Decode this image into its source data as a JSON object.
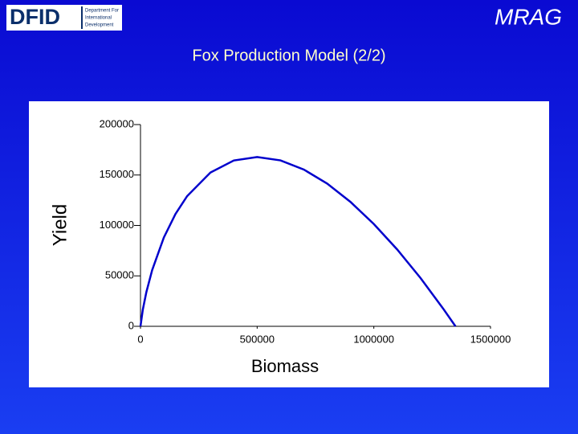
{
  "header": {
    "left_logo": {
      "name": "DFID",
      "lines": [
        "Department For",
        "International",
        "Development"
      ]
    },
    "right_logo": "MRAG",
    "title": "Fox Production Model (2/2)"
  },
  "chart_data": {
    "type": "line",
    "x_label": "Biomass",
    "y_label": "Yield",
    "x": [
      0,
      10000,
      25000,
      50000,
      100000,
      150000,
      200000,
      300000,
      400000,
      500000,
      600000,
      700000,
      800000,
      900000,
      1000000,
      1100000,
      1200000,
      1300000,
      1350000
    ],
    "series": [
      {
        "name": "Yield",
        "color": "#0000cc",
        "values": [
          0,
          16580,
          33710,
          55700,
          87970,
          111400,
          129100,
          152500,
          164400,
          167800,
          164500,
          155400,
          141500,
          123300,
          101400,
          76200,
          47900,
          16600,
          0
        ]
      }
    ],
    "xlim": [
      0,
      1500000
    ],
    "ylim": [
      0,
      200000
    ],
    "xticks": [
      0,
      500000,
      1000000,
      1500000
    ],
    "yticks": [
      0,
      50000,
      100000,
      150000,
      200000
    ]
  }
}
